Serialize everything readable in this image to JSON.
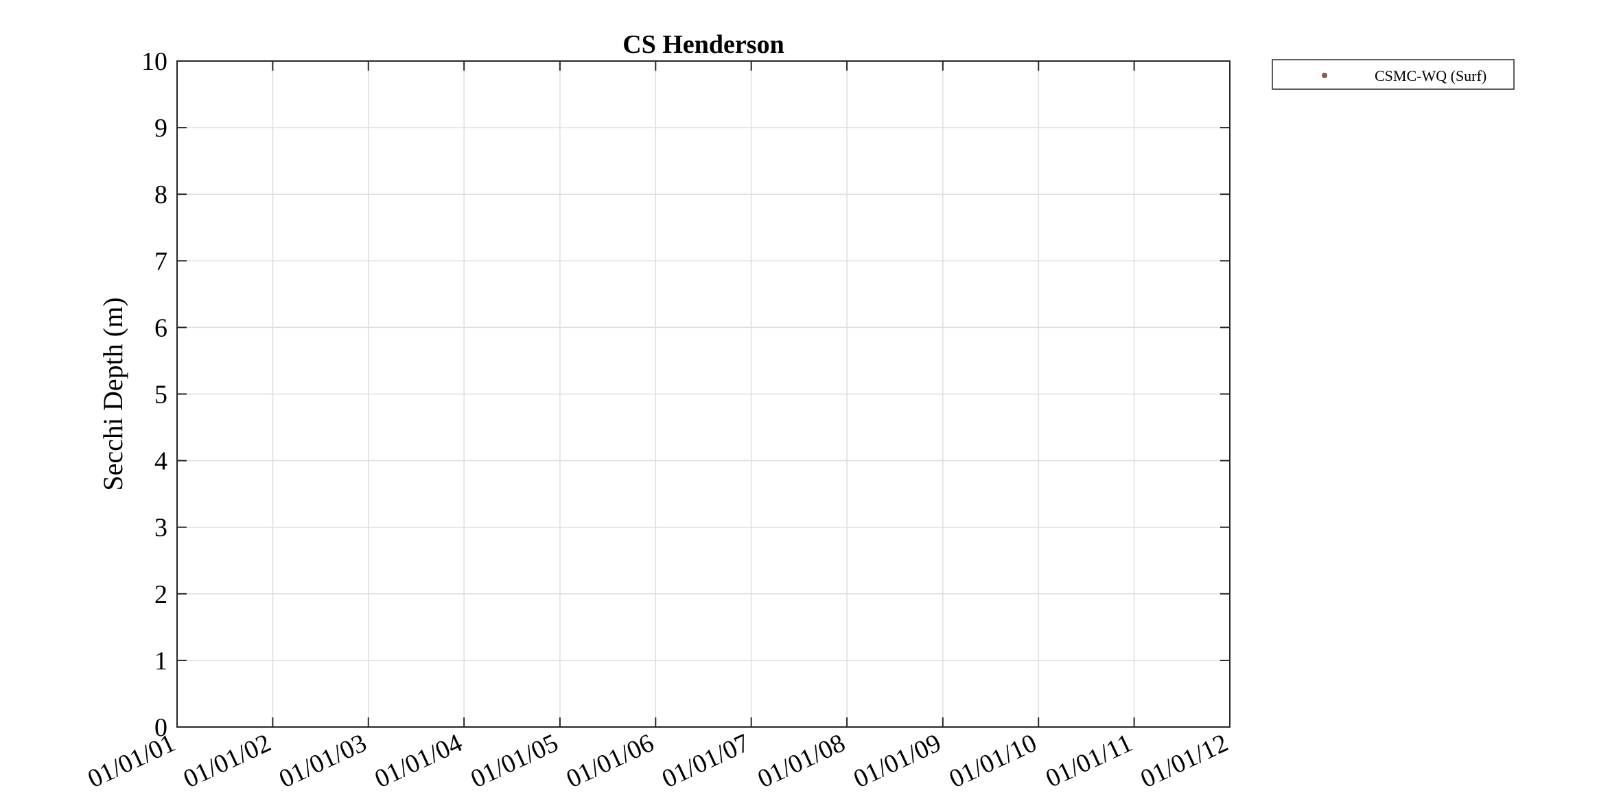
{
  "chart_data": {
    "type": "scatter",
    "title": "CS Henderson",
    "xlabel": "",
    "ylabel": "Secchi Depth (m)",
    "x_tick_labels": [
      "01/01/01",
      "01/01/02",
      "01/01/03",
      "01/01/04",
      "01/01/05",
      "01/01/06",
      "01/01/07",
      "01/01/08",
      "01/01/09",
      "01/01/10",
      "01/01/11",
      "01/01/12"
    ],
    "xlim": [
      "2001-01-01",
      "2012-01-01"
    ],
    "ylim": [
      0,
      10
    ],
    "y_ticks": [
      0,
      1,
      2,
      3,
      4,
      5,
      6,
      7,
      8,
      9,
      10
    ],
    "grid": true,
    "legend_position": "outside-top-right",
    "series": [
      {
        "name": "CSMC-WQ (Surf)",
        "color": "#8B5A4A",
        "marker": "dot",
        "points": []
      }
    ]
  }
}
